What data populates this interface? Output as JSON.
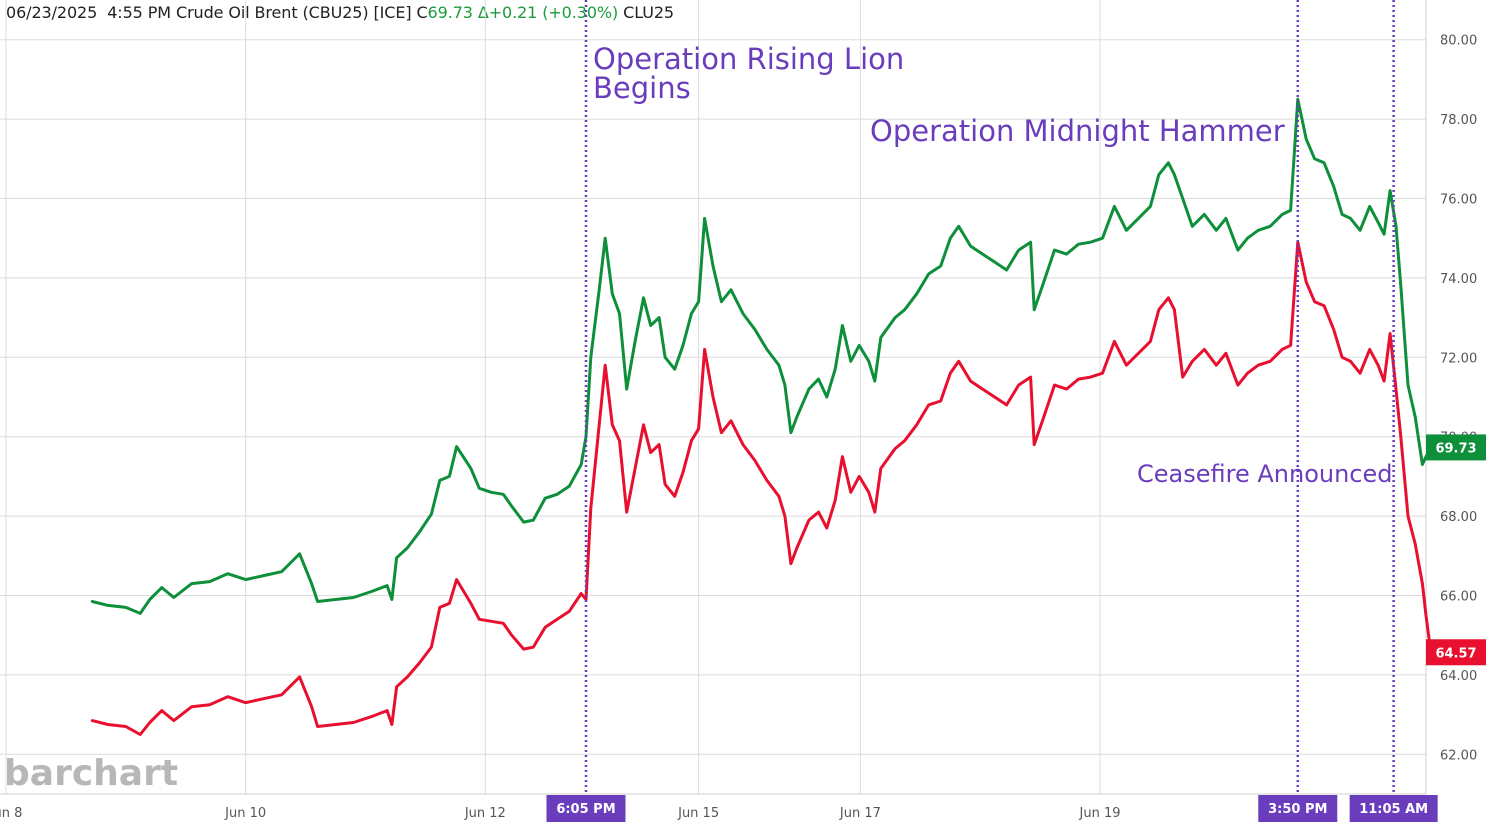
{
  "header": {
    "date": "06/23/2025",
    "time": "4:55 PM",
    "instrument": "Crude Oil Brent (CBU25) [ICE]",
    "close_label": "C",
    "close_value": "69.73",
    "change": "Δ+0.21 (+0.30%)",
    "symbol2": "CLU25"
  },
  "logo_text": "barchart",
  "chart_data": {
    "type": "line",
    "title": "Crude Oil Brent (CBU25) [ICE]",
    "ylim": [
      61,
      81
    ],
    "yticks": [
      "62.00",
      "64.00",
      "66.00",
      "68.00",
      "70.00",
      "72.00",
      "74.00",
      "76.00",
      "78.00",
      "80.00"
    ],
    "xlim": [
      0,
      11.85
    ],
    "xticks": [
      {
        "x": 0,
        "label": "Jun 8"
      },
      {
        "x": 2,
        "label": "Jun 10"
      },
      {
        "x": 4,
        "label": "Jun 12"
      },
      {
        "x": 5.78,
        "label": "Jun 15"
      },
      {
        "x": 7.13,
        "label": "Jun 17"
      },
      {
        "x": 9.13,
        "label": "Jun 19"
      }
    ],
    "series": [
      {
        "name": "CBU25",
        "color": "#0e8f3a",
        "last_label": "69.73",
        "points": [
          [
            0.72,
            65.85
          ],
          [
            0.85,
            65.75
          ],
          [
            1.0,
            65.7
          ],
          [
            1.12,
            65.55
          ],
          [
            1.2,
            65.9
          ],
          [
            1.3,
            66.2
          ],
          [
            1.4,
            65.95
          ],
          [
            1.55,
            66.3
          ],
          [
            1.7,
            66.35
          ],
          [
            1.85,
            66.55
          ],
          [
            2.0,
            66.4
          ],
          [
            2.15,
            66.5
          ],
          [
            2.3,
            66.6
          ],
          [
            2.45,
            67.05
          ],
          [
            2.55,
            66.3
          ],
          [
            2.6,
            65.85
          ],
          [
            2.75,
            65.9
          ],
          [
            2.9,
            65.95
          ],
          [
            3.05,
            66.1
          ],
          [
            3.18,
            66.25
          ],
          [
            3.22,
            65.9
          ],
          [
            3.26,
            66.95
          ],
          [
            3.35,
            67.2
          ],
          [
            3.45,
            67.6
          ],
          [
            3.55,
            68.05
          ],
          [
            3.62,
            68.9
          ],
          [
            3.7,
            69.0
          ],
          [
            3.76,
            69.75
          ],
          [
            3.88,
            69.2
          ],
          [
            3.95,
            68.7
          ],
          [
            4.05,
            68.6
          ],
          [
            4.15,
            68.55
          ],
          [
            4.22,
            68.25
          ],
          [
            4.32,
            67.85
          ],
          [
            4.4,
            67.9
          ],
          [
            4.5,
            68.45
          ],
          [
            4.6,
            68.55
          ],
          [
            4.7,
            68.75
          ],
          [
            4.8,
            69.3
          ],
          [
            4.84,
            70.0
          ],
          [
            4.88,
            72.0
          ],
          [
            4.95,
            73.7
          ],
          [
            5.0,
            75.0
          ],
          [
            5.06,
            73.6
          ],
          [
            5.12,
            73.1
          ],
          [
            5.18,
            71.2
          ],
          [
            5.25,
            72.4
          ],
          [
            5.32,
            73.5
          ],
          [
            5.38,
            72.8
          ],
          [
            5.45,
            73.0
          ],
          [
            5.5,
            72.0
          ],
          [
            5.58,
            71.7
          ],
          [
            5.65,
            72.3
          ],
          [
            5.72,
            73.1
          ],
          [
            5.78,
            73.4
          ],
          [
            5.83,
            75.5
          ],
          [
            5.9,
            74.3
          ],
          [
            5.97,
            73.4
          ],
          [
            6.05,
            73.7
          ],
          [
            6.15,
            73.1
          ],
          [
            6.25,
            72.7
          ],
          [
            6.35,
            72.2
          ],
          [
            6.45,
            71.8
          ],
          [
            6.5,
            71.3
          ],
          [
            6.55,
            70.1
          ],
          [
            6.6,
            70.5
          ],
          [
            6.7,
            71.2
          ],
          [
            6.78,
            71.45
          ],
          [
            6.85,
            71.0
          ],
          [
            6.92,
            71.7
          ],
          [
            6.98,
            72.8
          ],
          [
            7.05,
            71.9
          ],
          [
            7.12,
            72.3
          ],
          [
            7.2,
            71.9
          ],
          [
            7.25,
            71.4
          ],
          [
            7.3,
            72.5
          ],
          [
            7.42,
            73.0
          ],
          [
            7.5,
            73.2
          ],
          [
            7.6,
            73.6
          ],
          [
            7.7,
            74.1
          ],
          [
            7.8,
            74.3
          ],
          [
            7.88,
            75.0
          ],
          [
            7.95,
            75.3
          ],
          [
            8.05,
            74.8
          ],
          [
            8.15,
            74.6
          ],
          [
            8.25,
            74.4
          ],
          [
            8.35,
            74.2
          ],
          [
            8.45,
            74.7
          ],
          [
            8.55,
            74.9
          ],
          [
            8.58,
            73.2
          ],
          [
            8.65,
            73.8
          ],
          [
            8.75,
            74.7
          ],
          [
            8.85,
            74.6
          ],
          [
            8.95,
            74.85
          ],
          [
            9.05,
            74.9
          ],
          [
            9.15,
            75.0
          ],
          [
            9.25,
            75.8
          ],
          [
            9.35,
            75.2
          ],
          [
            9.45,
            75.5
          ],
          [
            9.55,
            75.8
          ],
          [
            9.62,
            76.6
          ],
          [
            9.7,
            76.9
          ],
          [
            9.75,
            76.6
          ],
          [
            9.82,
            76.0
          ],
          [
            9.9,
            75.3
          ],
          [
            10.0,
            75.6
          ],
          [
            10.1,
            75.2
          ],
          [
            10.18,
            75.5
          ],
          [
            10.28,
            74.7
          ],
          [
            10.36,
            75.0
          ],
          [
            10.45,
            75.2
          ],
          [
            10.55,
            75.3
          ],
          [
            10.65,
            75.6
          ],
          [
            10.72,
            75.7
          ],
          [
            10.78,
            78.5
          ],
          [
            10.85,
            77.5
          ],
          [
            10.92,
            77.0
          ],
          [
            11.0,
            76.9
          ],
          [
            11.08,
            76.3
          ],
          [
            11.15,
            75.6
          ],
          [
            11.22,
            75.5
          ],
          [
            11.3,
            75.2
          ],
          [
            11.38,
            75.8
          ],
          [
            11.45,
            75.4
          ],
          [
            11.5,
            75.1
          ],
          [
            11.55,
            76.2
          ],
          [
            11.6,
            75.3
          ],
          [
            11.64,
            73.8
          ],
          [
            11.7,
            71.3
          ],
          [
            11.76,
            70.5
          ],
          [
            11.82,
            69.3
          ],
          [
            11.85,
            69.5
          ],
          [
            11.89,
            69.73
          ]
        ]
      },
      {
        "name": "CLU25",
        "color": "#e8102e",
        "last_label": "64.57",
        "points": [
          [
            0.72,
            62.85
          ],
          [
            0.85,
            62.75
          ],
          [
            1.0,
            62.7
          ],
          [
            1.12,
            62.5
          ],
          [
            1.2,
            62.8
          ],
          [
            1.3,
            63.1
          ],
          [
            1.4,
            62.85
          ],
          [
            1.55,
            63.2
          ],
          [
            1.7,
            63.25
          ],
          [
            1.85,
            63.45
          ],
          [
            2.0,
            63.3
          ],
          [
            2.15,
            63.4
          ],
          [
            2.3,
            63.5
          ],
          [
            2.45,
            63.95
          ],
          [
            2.55,
            63.2
          ],
          [
            2.6,
            62.7
          ],
          [
            2.75,
            62.75
          ],
          [
            2.9,
            62.8
          ],
          [
            3.05,
            62.95
          ],
          [
            3.18,
            63.1
          ],
          [
            3.22,
            62.75
          ],
          [
            3.26,
            63.7
          ],
          [
            3.35,
            63.95
          ],
          [
            3.45,
            64.3
          ],
          [
            3.55,
            64.7
          ],
          [
            3.62,
            65.7
          ],
          [
            3.7,
            65.8
          ],
          [
            3.76,
            66.4
          ],
          [
            3.88,
            65.8
          ],
          [
            3.95,
            65.4
          ],
          [
            4.05,
            65.35
          ],
          [
            4.15,
            65.3
          ],
          [
            4.22,
            65.0
          ],
          [
            4.32,
            64.65
          ],
          [
            4.4,
            64.7
          ],
          [
            4.5,
            65.2
          ],
          [
            4.6,
            65.4
          ],
          [
            4.7,
            65.6
          ],
          [
            4.8,
            66.05
          ],
          [
            4.84,
            65.9
          ],
          [
            4.88,
            68.2
          ],
          [
            4.95,
            70.3
          ],
          [
            5.0,
            71.8
          ],
          [
            5.06,
            70.3
          ],
          [
            5.12,
            69.9
          ],
          [
            5.18,
            68.1
          ],
          [
            5.25,
            69.2
          ],
          [
            5.32,
            70.3
          ],
          [
            5.38,
            69.6
          ],
          [
            5.45,
            69.8
          ],
          [
            5.5,
            68.8
          ],
          [
            5.58,
            68.5
          ],
          [
            5.65,
            69.1
          ],
          [
            5.72,
            69.9
          ],
          [
            5.78,
            70.2
          ],
          [
            5.83,
            72.2
          ],
          [
            5.9,
            71.0
          ],
          [
            5.97,
            70.1
          ],
          [
            6.05,
            70.4
          ],
          [
            6.15,
            69.8
          ],
          [
            6.25,
            69.4
          ],
          [
            6.35,
            68.9
          ],
          [
            6.45,
            68.5
          ],
          [
            6.5,
            68.0
          ],
          [
            6.55,
            66.8
          ],
          [
            6.6,
            67.2
          ],
          [
            6.7,
            67.9
          ],
          [
            6.78,
            68.1
          ],
          [
            6.85,
            67.7
          ],
          [
            6.92,
            68.4
          ],
          [
            6.98,
            69.5
          ],
          [
            7.05,
            68.6
          ],
          [
            7.12,
            69.0
          ],
          [
            7.2,
            68.6
          ],
          [
            7.25,
            68.1
          ],
          [
            7.3,
            69.2
          ],
          [
            7.42,
            69.7
          ],
          [
            7.5,
            69.9
          ],
          [
            7.6,
            70.3
          ],
          [
            7.7,
            70.8
          ],
          [
            7.8,
            70.9
          ],
          [
            7.88,
            71.6
          ],
          [
            7.95,
            71.9
          ],
          [
            8.05,
            71.4
          ],
          [
            8.15,
            71.2
          ],
          [
            8.25,
            71.0
          ],
          [
            8.35,
            70.8
          ],
          [
            8.45,
            71.3
          ],
          [
            8.55,
            71.5
          ],
          [
            8.58,
            69.8
          ],
          [
            8.65,
            70.4
          ],
          [
            8.75,
            71.3
          ],
          [
            8.85,
            71.2
          ],
          [
            8.95,
            71.45
          ],
          [
            9.05,
            71.5
          ],
          [
            9.15,
            71.6
          ],
          [
            9.25,
            72.4
          ],
          [
            9.35,
            71.8
          ],
          [
            9.45,
            72.1
          ],
          [
            9.55,
            72.4
          ],
          [
            9.62,
            73.2
          ],
          [
            9.7,
            73.5
          ],
          [
            9.75,
            73.2
          ],
          [
            9.82,
            71.5
          ],
          [
            9.9,
            71.9
          ],
          [
            10.0,
            72.2
          ],
          [
            10.1,
            71.8
          ],
          [
            10.18,
            72.1
          ],
          [
            10.28,
            71.3
          ],
          [
            10.36,
            71.6
          ],
          [
            10.45,
            71.8
          ],
          [
            10.55,
            71.9
          ],
          [
            10.65,
            72.2
          ],
          [
            10.72,
            72.3
          ],
          [
            10.78,
            74.9
          ],
          [
            10.85,
            73.9
          ],
          [
            10.92,
            73.4
          ],
          [
            11.0,
            73.3
          ],
          [
            11.08,
            72.7
          ],
          [
            11.15,
            72.0
          ],
          [
            11.22,
            71.9
          ],
          [
            11.3,
            71.6
          ],
          [
            11.38,
            72.2
          ],
          [
            11.45,
            71.8
          ],
          [
            11.5,
            71.4
          ],
          [
            11.55,
            72.6
          ],
          [
            11.6,
            71.2
          ],
          [
            11.64,
            70.0
          ],
          [
            11.7,
            68.0
          ],
          [
            11.76,
            67.3
          ],
          [
            11.82,
            66.3
          ],
          [
            11.85,
            65.5
          ],
          [
            11.89,
            64.57
          ]
        ]
      }
    ],
    "event_lines": [
      {
        "x": 4.84,
        "time_label": "6:05 PM"
      },
      {
        "x": 10.78,
        "time_label": "3:50 PM"
      },
      {
        "x": 11.58,
        "time_label": "11:05 AM"
      }
    ],
    "annotations": [
      {
        "text": "Operation Rising Lion",
        "text2": "Begins"
      },
      {
        "text": "Operation Midnight Hammer"
      },
      {
        "text": "Ceasefire Announced"
      }
    ]
  }
}
